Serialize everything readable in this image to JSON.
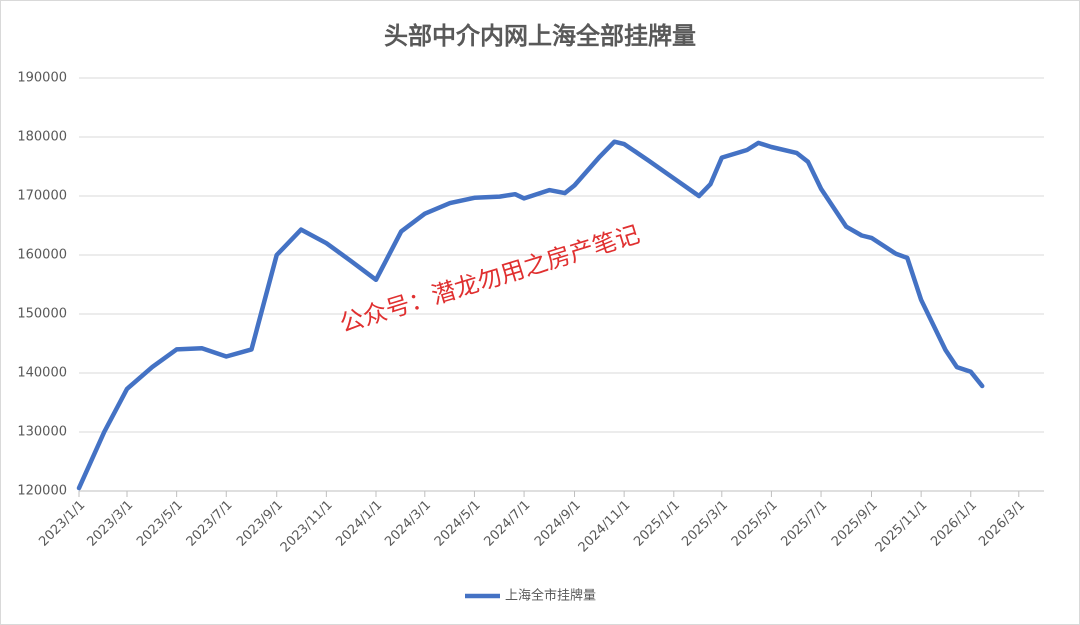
{
  "chart_data": {
    "type": "line",
    "title": "头部中介内网上海全部挂牌量",
    "annotation": "公众号：潜龙勿用之房产笔记",
    "x": [
      "2023/1/1",
      "2023/2/1",
      "2023/3/1",
      "2023/4/1",
      "2023/5/1",
      "2023/6/1",
      "2023/7/1",
      "2023/8/1",
      "2023/9/1",
      "2023/10/1",
      "2023/11/1",
      "2023/12/1",
      "2024/1/1",
      "2024/2/1",
      "2024/3/1",
      "2024/4/1",
      "2024/5/1",
      "2024/6/1",
      "2024/6/20",
      "2024/7/1",
      "2024/8/1",
      "2024/8/20",
      "2024/9/1",
      "2024/10/1",
      "2024/10/20",
      "2024/11/1",
      "2024/12/1",
      "2025/1/1",
      "2025/2/1",
      "2025/2/15",
      "2025/3/1",
      "2025/4/1",
      "2025/4/15",
      "2025/5/1",
      "2025/6/1",
      "2025/6/15",
      "2025/7/1",
      "2025/8/1",
      "2025/8/20",
      "2025/9/1",
      "2025/10/1",
      "2025/10/15",
      "2025/11/1",
      "2025/12/1",
      "2025/12/15",
      "2026/1/1",
      "2026/1/15"
    ],
    "series": [
      {
        "name": "上海全市挂牌量",
        "color": "#4472c4",
        "values": [
          120500,
          130000,
          137300,
          141000,
          144000,
          144200,
          142800,
          144000,
          160000,
          164300,
          162000,
          159000,
          155800,
          164000,
          167000,
          168800,
          169700,
          169900,
          170300,
          169600,
          171000,
          170500,
          171800,
          176500,
          179200,
          178800,
          176000,
          173000,
          170000,
          172000,
          176500,
          177800,
          179000,
          178300,
          177300,
          175800,
          171200,
          164800,
          163300,
          162900,
          160200,
          159500,
          152400,
          143900,
          141000,
          140200,
          137800
        ]
      }
    ],
    "xlim": [
      "2023/1/1",
      "2026/4/1"
    ],
    "xticks": [
      "2023/1/1",
      "2023/3/1",
      "2023/5/1",
      "2023/7/1",
      "2023/9/1",
      "2023/11/1",
      "2024/1/1",
      "2024/3/1",
      "2024/5/1",
      "2024/7/1",
      "2024/9/1",
      "2024/11/1",
      "2025/1/1",
      "2025/3/1",
      "2025/5/1",
      "2025/7/1",
      "2025/9/1",
      "2025/11/1",
      "2026/1/1",
      "2026/3/1"
    ],
    "ylim": [
      120000,
      190000
    ],
    "yticks": [
      120000,
      130000,
      140000,
      150000,
      160000,
      170000,
      180000,
      190000
    ],
    "grid": true
  }
}
